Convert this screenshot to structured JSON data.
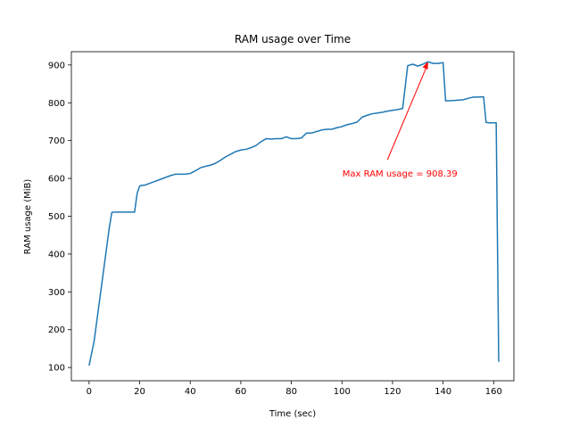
{
  "chart_data": {
    "type": "line",
    "title": "RAM usage over Time",
    "xlabel": "Time (sec)",
    "ylabel": "RAM usage (MiB)",
    "xlim": [
      -7,
      168
    ],
    "ylim": [
      65,
      935
    ],
    "xticks": [
      0,
      20,
      40,
      60,
      80,
      100,
      120,
      140,
      160
    ],
    "yticks": [
      100,
      200,
      300,
      400,
      500,
      600,
      700,
      800,
      900
    ],
    "grid": false,
    "series": [
      {
        "color": "#1f77b4",
        "x": [
          0,
          2,
          4,
          6,
          8,
          9,
          10,
          12,
          14,
          16,
          18,
          19,
          20,
          21,
          22,
          24,
          26,
          28,
          30,
          32,
          34,
          36,
          38,
          40,
          42,
          44,
          46,
          48,
          50,
          52,
          54,
          56,
          58,
          60,
          62,
          64,
          66,
          68,
          70,
          72,
          74,
          76,
          78,
          80,
          82,
          84,
          86,
          88,
          90,
          92,
          94,
          96,
          98,
          100,
          102,
          104,
          106,
          108,
          110,
          112,
          114,
          116,
          118,
          120,
          122,
          124,
          126,
          128,
          130,
          132,
          134,
          136,
          138,
          140,
          141,
          144,
          148,
          150,
          152,
          154,
          156,
          157,
          158,
          160,
          161,
          162
        ],
        "y": [
          105,
          170,
          270,
          370,
          470,
          510,
          511,
          511,
          511,
          511,
          511,
          560,
          580,
          582,
          582,
          587,
          592,
          597,
          602,
          607,
          611,
          611,
          611,
          613,
          620,
          628,
          632,
          635,
          640,
          648,
          657,
          664,
          671,
          675,
          677,
          681,
          687,
          697,
          705,
          704,
          705,
          705,
          710,
          705,
          705,
          707,
          720,
          720,
          724,
          728,
          730,
          730,
          734,
          737,
          742,
          745,
          749,
          762,
          767,
          771,
          773,
          775,
          778,
          780,
          782,
          785,
          898,
          902,
          897,
          902,
          908.39,
          904,
          904,
          906,
          805,
          806,
          808,
          812,
          815,
          815,
          816,
          748,
          747,
          747,
          747,
          115
        ]
      }
    ],
    "annotation": {
      "text": "Max RAM usage = 908.39",
      "color": "#ff0000",
      "point": [
        134,
        908.39
      ],
      "text_position": [
        118,
        640
      ]
    }
  }
}
